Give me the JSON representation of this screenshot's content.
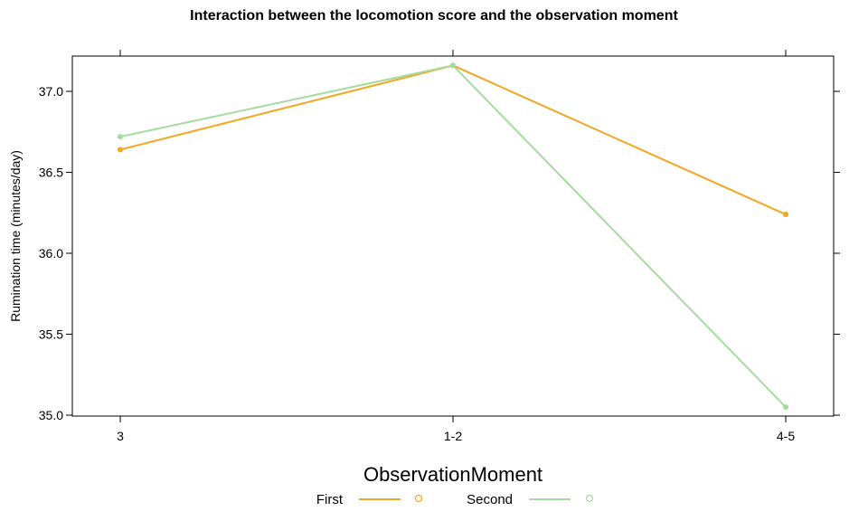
{
  "chart_data": {
    "type": "line",
    "title": "Interaction between the locomotion score and the observation moment",
    "xlabel": "ObservationMoment",
    "ylabel": "Rumination time (minutes/day)",
    "categories": [
      "3",
      "1-2",
      "4-5"
    ],
    "ylim": [
      35.0,
      37.2
    ],
    "yticks": [
      "35.0",
      "35.5",
      "36.0",
      "36.5",
      "37.0"
    ],
    "grid": false,
    "legend_position": "bottom",
    "series": [
      {
        "name": "First",
        "color": "#f5a623",
        "values": [
          36.64,
          37.16,
          36.24
        ]
      },
      {
        "name": "Second",
        "color": "#a6dba0",
        "values": [
          36.72,
          37.16,
          35.05
        ]
      }
    ]
  }
}
